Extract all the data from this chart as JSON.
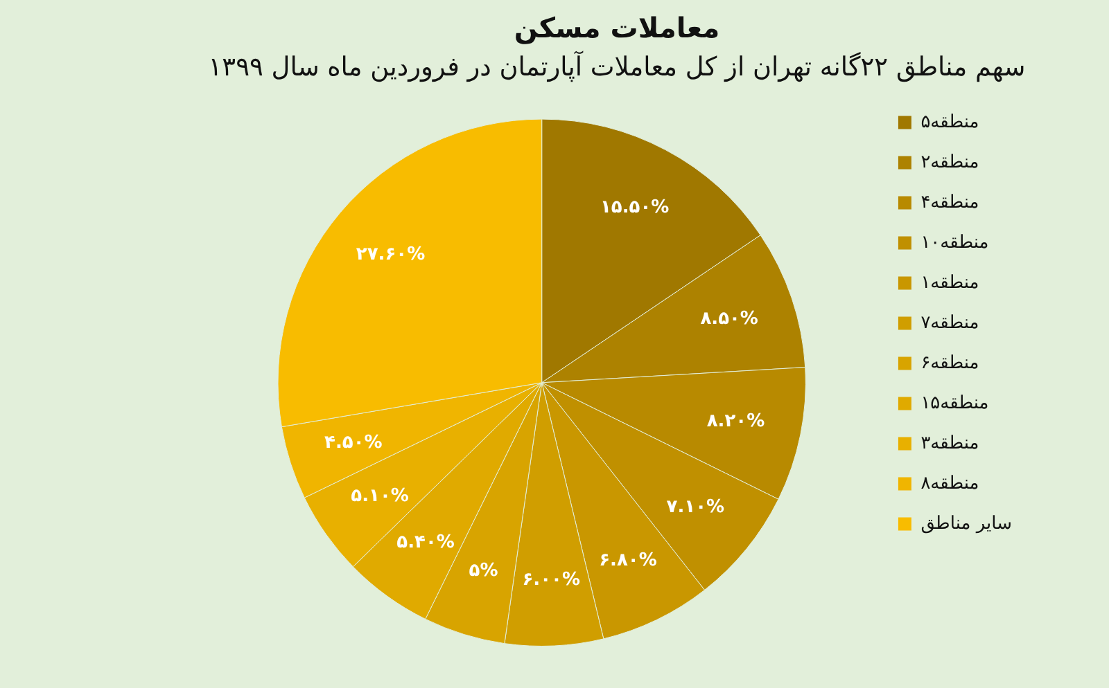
{
  "chart_data": {
    "type": "pie",
    "title": "معاملات مسکن",
    "subtitle": "سهم مناطق ۲۲گانه تهران از کل معاملات آپارتمان در فروردین ماه سال ۱۳۹۹",
    "categories": [
      "منطقه۵",
      "منطقه۲",
      "منطقه۴",
      "منطقه۱۰",
      "منطقه۱",
      "منطقه۷",
      "منطقه۶",
      "منطقه۱۵",
      "منطقه۳",
      "منطقه۸",
      "سایر مناطق"
    ],
    "values": [
      15.5,
      8.5,
      8.2,
      7.1,
      6.8,
      6.0,
      5,
      5.4,
      5.1,
      4.5,
      27.6
    ],
    "value_labels": [
      "۱۵.۵۰%",
      "۸.۵۰%",
      "۸.۲۰%",
      "۷.۱۰%",
      "۶.۸۰%",
      "۶.۰۰%",
      "۵%",
      "۵.۴۰%",
      "۵.۱۰%",
      "۴.۵۰%",
      "۲۷.۶۰%"
    ],
    "colors": [
      "#a07800",
      "#ad8200",
      "#b88a00",
      "#c09000",
      "#c99700",
      "#d09e00",
      "#d8a400",
      "#e0aa00",
      "#e8b000",
      "#f0b500",
      "#f8bc00"
    ],
    "legend": "right"
  }
}
